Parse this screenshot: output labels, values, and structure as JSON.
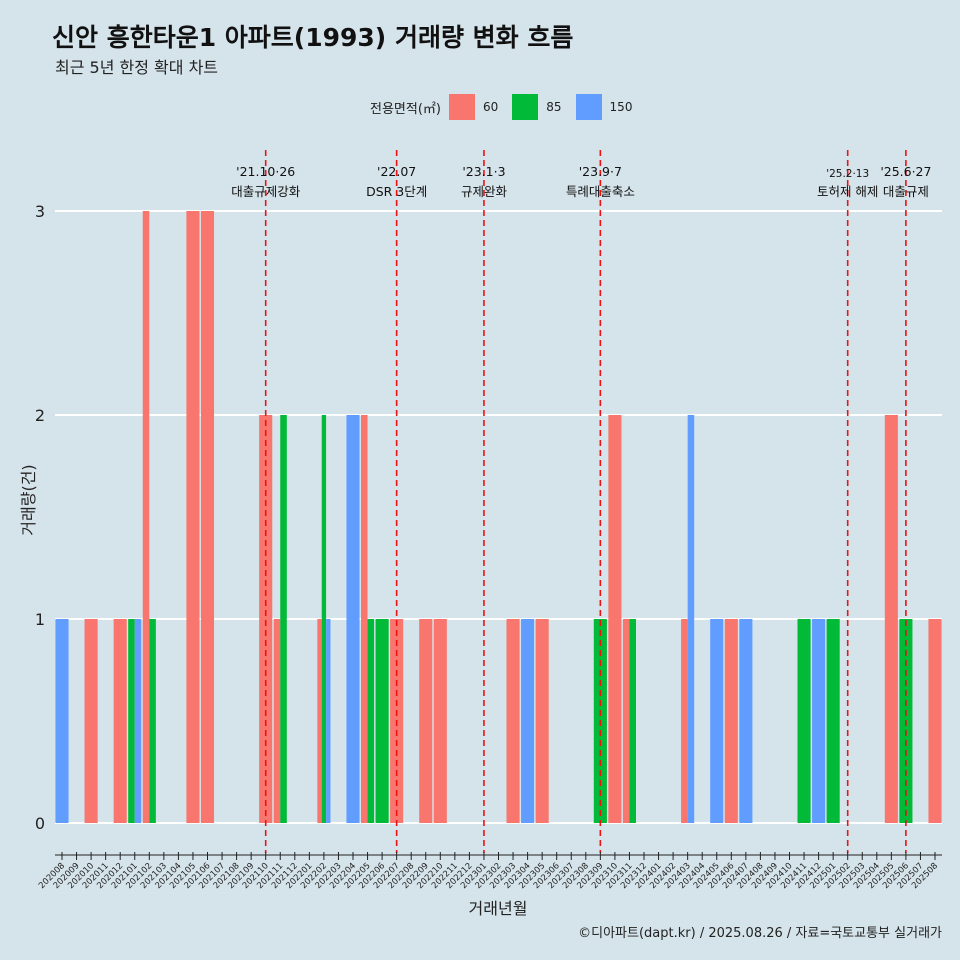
{
  "title": "신안 흥한타운1 아파트(1993) 거래량 변화 흐름",
  "subtitle": "최근 5년 한정 확대 차트",
  "caption": "©디아파트(dapt.kr) / 2025.08.26 / 자료=국토교통부 실거래가",
  "legend": {
    "title": "전용면적(㎡)",
    "items": [
      {
        "label": "60",
        "color": "#f8766d"
      },
      {
        "label": "85",
        "color": "#00ba38"
      },
      {
        "label": "150",
        "color": "#619cff"
      }
    ]
  },
  "chart_data": {
    "type": "bar",
    "xlabel": "거래년월",
    "ylabel": "거래량(건)",
    "ylim": [
      0,
      3
    ],
    "yticks": [
      0,
      1,
      2,
      3
    ],
    "grid": true,
    "legend_position": "top",
    "categories": [
      "202008",
      "202009",
      "202010",
      "202011",
      "202012",
      "202101",
      "202102",
      "202103",
      "202104",
      "202105",
      "202106",
      "202107",
      "202108",
      "202109",
      "202110",
      "202111",
      "202112",
      "202201",
      "202202",
      "202203",
      "202204",
      "202205",
      "202206",
      "202207",
      "202208",
      "202209",
      "202210",
      "202211",
      "202212",
      "202301",
      "202302",
      "202303",
      "202304",
      "202305",
      "202306",
      "202307",
      "202308",
      "202309",
      "202310",
      "202311",
      "202312",
      "202401",
      "202402",
      "202403",
      "202404",
      "202405",
      "202406",
      "202407",
      "202408",
      "202409",
      "202410",
      "202411",
      "202412",
      "202501",
      "202502",
      "202503",
      "202504",
      "202505",
      "202506",
      "202507",
      "202508"
    ],
    "series": [
      {
        "name": "60",
        "color": "#f8766d",
        "values": [
          0,
          0,
          1,
          0,
          1,
          0,
          3,
          0,
          0,
          3,
          3,
          0,
          0,
          0,
          2,
          1,
          0,
          0,
          1,
          0,
          0,
          2,
          0,
          1,
          0,
          1,
          1,
          0,
          0,
          0,
          0,
          1,
          0,
          1,
          0,
          0,
          0,
          0,
          2,
          1,
          0,
          0,
          0,
          1,
          0,
          0,
          1,
          0,
          0,
          0,
          0,
          0,
          0,
          0,
          0,
          0,
          0,
          2,
          0,
          0,
          1
        ]
      },
      {
        "name": "85",
        "color": "#00ba38",
        "values": [
          0,
          0,
          0,
          0,
          0,
          1,
          1,
          0,
          0,
          0,
          0,
          0,
          0,
          0,
          0,
          2,
          0,
          0,
          2,
          0,
          0,
          1,
          1,
          0,
          0,
          0,
          0,
          0,
          0,
          0,
          0,
          0,
          0,
          0,
          0,
          0,
          0,
          1,
          0,
          1,
          0,
          0,
          0,
          0,
          0,
          0,
          0,
          0,
          0,
          0,
          0,
          1,
          0,
          1,
          0,
          0,
          0,
          0,
          1,
          0,
          0
        ]
      },
      {
        "name": "150",
        "color": "#619cff",
        "values": [
          1,
          0,
          0,
          0,
          0,
          1,
          0,
          0,
          0,
          0,
          0,
          0,
          0,
          0,
          0,
          0,
          0,
          0,
          1,
          0,
          2,
          0,
          0,
          0,
          0,
          0,
          0,
          0,
          0,
          0,
          0,
          0,
          1,
          0,
          0,
          0,
          0,
          0,
          0,
          0,
          0,
          0,
          0,
          2,
          0,
          1,
          0,
          1,
          0,
          0,
          0,
          0,
          1,
          0,
          0,
          0,
          0,
          0,
          0,
          0,
          0
        ]
      }
    ],
    "events": [
      {
        "date": "'21.10·26",
        "label": "대출규제강화",
        "month": "202110"
      },
      {
        "date": "'22.07",
        "label": "DSR 3단계",
        "month": "202207"
      },
      {
        "date": "'23.1·3",
        "label": "규제완화",
        "month": "202301"
      },
      {
        "date": "'23.9·7",
        "label": "특례대출축소",
        "month": "202309"
      },
      {
        "date": "'25.2·13",
        "label": "토허제 해제",
        "month": "202502"
      },
      {
        "date": "'25.6·27",
        "label": "대출규제",
        "month": "202506"
      }
    ]
  }
}
